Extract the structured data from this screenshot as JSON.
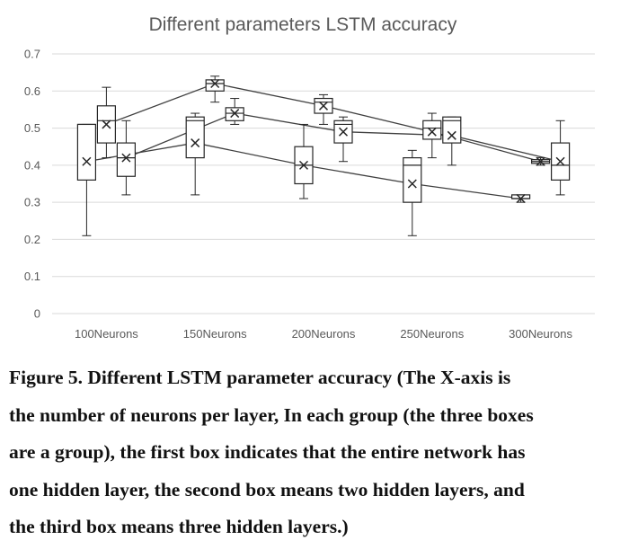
{
  "chart_data": {
    "type": "box",
    "title": "Different parameters LSTM accuracy",
    "xlabel": "",
    "ylabel": "",
    "ylim": [
      0,
      0.7
    ],
    "yticks": [
      "0",
      "0.1",
      "0.2",
      "0.3",
      "0.4",
      "0.5",
      "0.6",
      "0.7"
    ],
    "categories": [
      "100Neurons",
      "150Neurons",
      "200Neurons",
      "250Neurons",
      "300Neurons"
    ],
    "grid": true,
    "legend": "none",
    "series": [
      {
        "boxes": [
          {
            "min": 0.21,
            "q1": 0.36,
            "median": 0.51,
            "q3": 0.51,
            "max": 0.51,
            "mean": 0.41
          },
          {
            "min": 0.32,
            "q1": 0.42,
            "median": 0.52,
            "q3": 0.53,
            "max": 0.54,
            "mean": 0.46
          },
          {
            "min": 0.31,
            "q1": 0.35,
            "median": 0.4,
            "q3": 0.45,
            "max": 0.51,
            "mean": 0.4
          },
          {
            "min": 0.21,
            "q1": 0.3,
            "median": 0.4,
            "q3": 0.42,
            "max": 0.44,
            "mean": 0.35
          },
          {
            "min": 0.3,
            "q1": 0.31,
            "median": 0.31,
            "q3": 0.32,
            "max": 0.32,
            "mean": 0.31
          }
        ]
      },
      {
        "boxes": [
          {
            "min": 0.42,
            "q1": 0.46,
            "median": 0.52,
            "q3": 0.56,
            "max": 0.61,
            "mean": 0.51
          },
          {
            "min": 0.57,
            "q1": 0.6,
            "median": 0.62,
            "q3": 0.63,
            "max": 0.64,
            "mean": 0.62
          },
          {
            "min": 0.51,
            "q1": 0.54,
            "median": 0.57,
            "q3": 0.58,
            "max": 0.59,
            "mean": 0.56
          },
          {
            "min": 0.42,
            "q1": 0.47,
            "median": 0.5,
            "q3": 0.52,
            "max": 0.54,
            "mean": 0.49
          },
          {
            "min": 0.4,
            "q1": 0.405,
            "median": 0.41,
            "q3": 0.415,
            "max": 0.42,
            "mean": 0.41
          }
        ]
      },
      {
        "boxes": [
          {
            "min": 0.32,
            "q1": 0.37,
            "median": 0.42,
            "q3": 0.46,
            "max": 0.52,
            "mean": 0.42
          },
          {
            "min": 0.51,
            "q1": 0.52,
            "median": 0.54,
            "q3": 0.555,
            "max": 0.58,
            "mean": 0.54
          },
          {
            "min": 0.41,
            "q1": 0.46,
            "median": 0.51,
            "q3": 0.52,
            "max": 0.53,
            "mean": 0.49
          },
          {
            "min": 0.4,
            "q1": 0.46,
            "median": 0.52,
            "q3": 0.53,
            "max": 0.53,
            "mean": 0.48
          },
          {
            "min": 0.32,
            "q1": 0.36,
            "median": 0.4,
            "q3": 0.46,
            "max": 0.52,
            "mean": 0.41
          }
        ]
      }
    ]
  },
  "caption": {
    "lines": [
      "Figure 5. Different LSTM parameter accuracy (The X-axis is",
      "the number of neurons per layer, In each group (the three boxes",
      "are a group), the first box indicates that the entire network has",
      "one hidden layer, the second box means two hidden layers, and",
      "the third box means three hidden layers.)"
    ]
  }
}
